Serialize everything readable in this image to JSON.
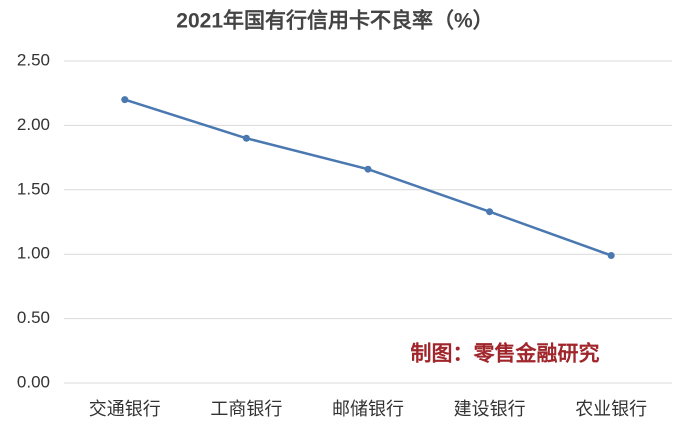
{
  "chart_data": {
    "type": "line",
    "title": "2021年国有行信用卡不良率（%）",
    "annotation": "制图：零售金融研究",
    "categories": [
      "交通银行",
      "工商银行",
      "邮储银行",
      "建设银行",
      "农业银行"
    ],
    "values": [
      2.2,
      1.9,
      1.66,
      1.33,
      0.99
    ],
    "color": "#4a78b0",
    "ylim": [
      0,
      2.5
    ],
    "yticks": [
      {
        "value": 0,
        "label": "0.00"
      },
      {
        "value": 0.5,
        "label": "0.50"
      },
      {
        "value": 1,
        "label": "1.00"
      },
      {
        "value": 1.5,
        "label": "1.50"
      },
      {
        "value": 2,
        "label": "2.00"
      },
      {
        "value": 2.5,
        "label": "2.50"
      }
    ],
    "grid": true
  }
}
